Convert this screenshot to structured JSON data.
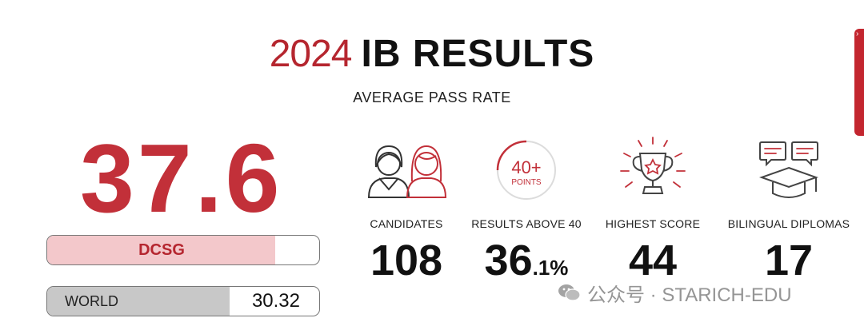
{
  "header": {
    "year": "2024",
    "title": "IB RESULTS",
    "subtitle": "AVERAGE PASS RATE"
  },
  "average": {
    "value": "37.6"
  },
  "comparison": {
    "dcsg": {
      "label": "DCSG",
      "fill_fraction": 0.837
    },
    "world": {
      "label": "WORLD",
      "value": "30.32",
      "fill_fraction": 0.67
    }
  },
  "stats": {
    "candidates": {
      "icon": "people-icon",
      "label": "CANDIDATES",
      "value": "108"
    },
    "above40": {
      "icon": "points-badge-icon",
      "label": "RESULTS ABOVE 40",
      "badge_line1": "40+",
      "badge_line2": "POINTS",
      "value_main": "36",
      "value_sub": ".1%"
    },
    "highest": {
      "icon": "trophy-icon",
      "label": "HIGHEST SCORE",
      "value": "44"
    },
    "bilingual": {
      "icon": "graduation-chat-icon",
      "label": "BILINGUAL DIPLOMAS",
      "value": "17"
    }
  },
  "watermark": {
    "text": "公众号 · STARICH-EDU"
  },
  "colors": {
    "accent": "#c23039",
    "pink_fill": "#f3c8cb",
    "grey_fill": "#c8c8c8",
    "text_dark": "#111111"
  }
}
